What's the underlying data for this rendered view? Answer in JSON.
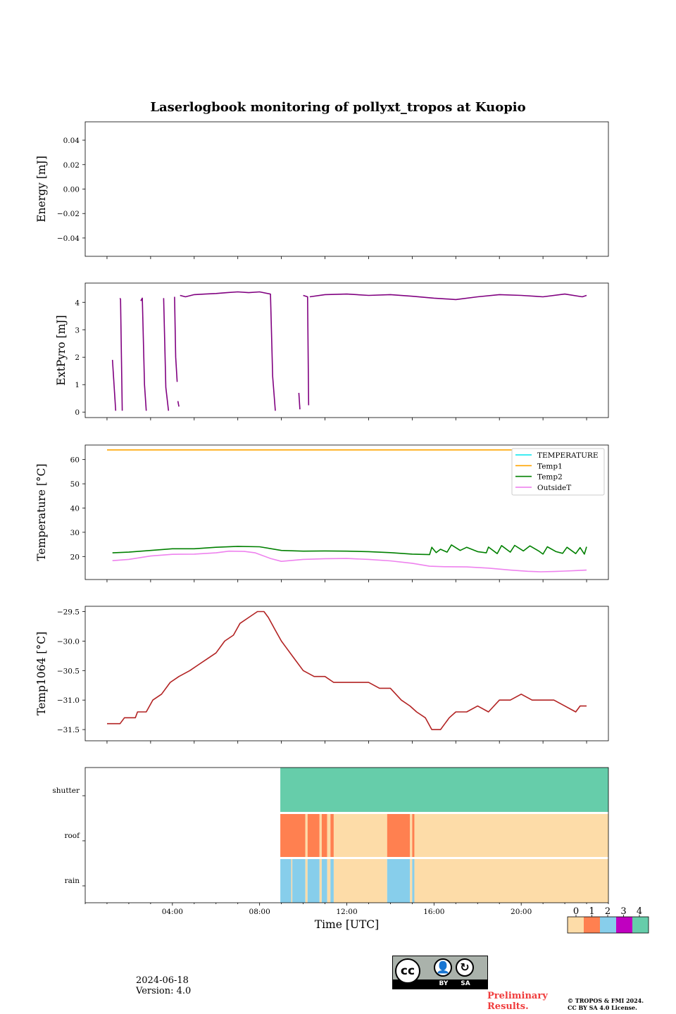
{
  "title": "Laserlogbook monitoring of pollyxt_tropos at Kuopio",
  "colors": {
    "energy": "#800080",
    "extpyro": "#800080",
    "temperature": "#00e5ee",
    "temp1": "#ffa500",
    "temp2": "#008000",
    "outsideT": "#ee82ee",
    "temp1064": "#b22222",
    "flag0": "#fddca8",
    "flag1": "#ff8050",
    "flag2": "#87ceeb",
    "flag3": "#c000c0",
    "flag4": "#66cdaa",
    "prelim": "#f03c3c"
  },
  "chart_data": [
    {
      "type": "line",
      "name": "energy",
      "ylabel": "Energy [mJ]",
      "ylim": [
        -0.055,
        0.055
      ],
      "yticks": [
        0.04,
        0.02,
        0.0,
        -0.02,
        -0.04
      ],
      "ytick_labels": [
        "0.04",
        "0.02",
        "0.00",
        "−0.02",
        "−0.04"
      ],
      "xlim": [
        -1,
        23
      ],
      "series": []
    },
    {
      "type": "line",
      "name": "extpyro",
      "ylabel": "ExtPyro [mJ]",
      "ylim": [
        -0.2,
        4.7
      ],
      "yticks": [
        0,
        1,
        2,
        3,
        4
      ],
      "ytick_labels": [
        "0",
        "1",
        "2",
        "3",
        "4"
      ],
      "xlim": [
        -1,
        23
      ],
      "series": [
        {
          "name": "ExtPyro",
          "segments": [
            [
              [
                0.25,
                1.9
              ],
              [
                0.4,
                0.05
              ]
            ],
            [
              [
                0.6,
                4.15
              ],
              [
                0.62,
                4.1
              ],
              [
                0.7,
                0.05
              ]
            ],
            [
              [
                1.55,
                4.05
              ],
              [
                1.62,
                4.15
              ],
              [
                1.72,
                1.0
              ],
              [
                1.8,
                0.05
              ]
            ],
            [
              [
                2.6,
                4.15
              ],
              [
                2.7,
                0.9
              ],
              [
                2.82,
                0.05
              ]
            ],
            [
              [
                3.1,
                4.2
              ],
              [
                3.15,
                2.0
              ],
              [
                3.22,
                1.1
              ]
            ],
            [
              [
                3.25,
                0.4
              ],
              [
                3.3,
                0.2
              ]
            ],
            [
              [
                3.35,
                4.25
              ],
              [
                3.6,
                4.2
              ],
              [
                4.0,
                4.28
              ],
              [
                4.5,
                4.3
              ],
              [
                5.0,
                4.32
              ],
              [
                5.5,
                4.35
              ],
              [
                6.0,
                4.38
              ],
              [
                6.5,
                4.35
              ],
              [
                7.0,
                4.38
              ],
              [
                7.5,
                4.3
              ],
              [
                7.6,
                1.3
              ],
              [
                7.72,
                0.05
              ]
            ],
            [
              [
                8.8,
                0.7
              ],
              [
                8.85,
                0.1
              ]
            ],
            [
              [
                9.0,
                4.25
              ],
              [
                9.2,
                4.2
              ],
              [
                9.25,
                0.25
              ]
            ],
            [
              [
                9.3,
                4.2
              ],
              [
                10,
                4.28
              ],
              [
                11,
                4.3
              ],
              [
                12,
                4.25
              ],
              [
                13,
                4.28
              ],
              [
                14,
                4.22
              ],
              [
                15,
                4.15
              ],
              [
                16,
                4.1
              ],
              [
                17,
                4.2
              ],
              [
                18,
                4.28
              ],
              [
                19,
                4.25
              ],
              [
                20,
                4.2
              ],
              [
                21,
                4.3
              ],
              [
                21.8,
                4.2
              ],
              [
                22,
                4.25
              ]
            ]
          ]
        }
      ]
    },
    {
      "type": "line",
      "name": "temperature",
      "ylabel": "Temperature [°C]",
      "ylim": [
        10.5,
        66
      ],
      "yticks": [
        20,
        30,
        40,
        50,
        60
      ],
      "ytick_labels": [
        "20",
        "30",
        "40",
        "50",
        "60"
      ],
      "xlim": [
        -1,
        23
      ],
      "legend": [
        "TEMPERATURE",
        "Temp1",
        "Temp2",
        "OutsideT"
      ],
      "series": [
        {
          "name": "TEMPERATURE",
          "points": []
        },
        {
          "name": "Temp1",
          "points": [
            [
              0,
              64
            ],
            [
              18.7,
              64
            ]
          ]
        },
        {
          "name": "Temp2",
          "points": [
            [
              0.25,
              21.5
            ],
            [
              1,
              21.8
            ],
            [
              2,
              22.5
            ],
            [
              3,
              23.2
            ],
            [
              4,
              23.2
            ],
            [
              5,
              23.8
            ],
            [
              6,
              24.2
            ],
            [
              7,
              24.0
            ],
            [
              8,
              22.5
            ],
            [
              9,
              22.2
            ],
            [
              10,
              22.3
            ],
            [
              11,
              22.2
            ],
            [
              12,
              22.0
            ],
            [
              13,
              21.6
            ],
            [
              14,
              21.0
            ],
            [
              14.8,
              20.8
            ],
            [
              14.9,
              23.8
            ],
            [
              15.1,
              21.6
            ],
            [
              15.3,
              23.0
            ],
            [
              15.6,
              21.8
            ],
            [
              15.8,
              24.8
            ],
            [
              16.2,
              22.5
            ],
            [
              16.5,
              23.8
            ],
            [
              17,
              22.0
            ],
            [
              17.4,
              21.5
            ],
            [
              17.5,
              23.9
            ],
            [
              17.9,
              21.2
            ],
            [
              18.1,
              24.5
            ],
            [
              18.5,
              21.8
            ],
            [
              18.7,
              24.6
            ],
            [
              19.1,
              22.3
            ],
            [
              19.4,
              24.4
            ],
            [
              19.8,
              22.3
            ],
            [
              20.0,
              21.0
            ],
            [
              20.2,
              24.0
            ],
            [
              20.6,
              22.0
            ],
            [
              20.9,
              21.3
            ],
            [
              21.1,
              23.8
            ],
            [
              21.5,
              21.2
            ],
            [
              21.7,
              23.7
            ],
            [
              21.9,
              21.0
            ],
            [
              22,
              24.0
            ]
          ]
        },
        {
          "name": "OutsideT",
          "points": [
            [
              0.25,
              18.3
            ],
            [
              1,
              18.8
            ],
            [
              2,
              20.2
            ],
            [
              3,
              20.9
            ],
            [
              4,
              21.0
            ],
            [
              5,
              21.5
            ],
            [
              5.6,
              22.2
            ],
            [
              6.3,
              22.1
            ],
            [
              6.8,
              21.5
            ],
            [
              7.5,
              19.2
            ],
            [
              8,
              18.0
            ],
            [
              9,
              18.8
            ],
            [
              10,
              19.1
            ],
            [
              11,
              19.2
            ],
            [
              12,
              18.8
            ],
            [
              13,
              18.2
            ],
            [
              14,
              17.2
            ],
            [
              14.8,
              16.0
            ],
            [
              15.5,
              15.8
            ],
            [
              16.5,
              15.7
            ],
            [
              17.5,
              15.2
            ],
            [
              18.5,
              14.4
            ],
            [
              19.3,
              13.9
            ],
            [
              19.9,
              13.7
            ],
            [
              20.5,
              13.8
            ],
            [
              21,
              14.0
            ],
            [
              21.5,
              14.2
            ],
            [
              22,
              14.4
            ]
          ]
        }
      ]
    },
    {
      "type": "line",
      "name": "temp1064",
      "ylabel": "Temp1064 [°C]",
      "ylim": [
        -31.69,
        -29.41
      ],
      "yticks": [
        -29.5,
        -30.0,
        -30.5,
        -31.0,
        -31.5
      ],
      "ytick_labels": [
        "−29.5",
        "−30.0",
        "−30.5",
        "−31.0",
        "−31.5"
      ],
      "xlim": [
        -1,
        23
      ],
      "series": [
        {
          "name": "Temp1064",
          "points": [
            [
              0,
              -31.4
            ],
            [
              0.6,
              -31.4
            ],
            [
              0.8,
              -31.3
            ],
            [
              1.3,
              -31.3
            ],
            [
              1.4,
              -31.2
            ],
            [
              1.8,
              -31.2
            ],
            [
              2.1,
              -31.0
            ],
            [
              2.5,
              -30.9
            ],
            [
              2.9,
              -30.7
            ],
            [
              3.3,
              -30.6
            ],
            [
              3.8,
              -30.5
            ],
            [
              4.2,
              -30.4
            ],
            [
              4.6,
              -30.3
            ],
            [
              5.0,
              -30.2
            ],
            [
              5.4,
              -30.0
            ],
            [
              5.8,
              -29.9
            ],
            [
              6.1,
              -29.7
            ],
            [
              6.5,
              -29.6
            ],
            [
              6.9,
              -29.5
            ],
            [
              7.2,
              -29.5
            ],
            [
              7.4,
              -29.6
            ],
            [
              7.7,
              -29.8
            ],
            [
              8.0,
              -30.0
            ],
            [
              8.2,
              -30.1
            ],
            [
              8.6,
              -30.3
            ],
            [
              9.0,
              -30.5
            ],
            [
              9.5,
              -30.6
            ],
            [
              10.0,
              -30.6
            ],
            [
              10.4,
              -30.7
            ],
            [
              11.0,
              -30.7
            ],
            [
              11.5,
              -30.7
            ],
            [
              12.0,
              -30.7
            ],
            [
              12.5,
              -30.8
            ],
            [
              13.0,
              -30.8
            ],
            [
              13.5,
              -31.0
            ],
            [
              13.9,
              -31.1
            ],
            [
              14.2,
              -31.2
            ],
            [
              14.6,
              -31.3
            ],
            [
              14.9,
              -31.5
            ],
            [
              15.3,
              -31.5
            ],
            [
              15.5,
              -31.4
            ],
            [
              15.7,
              -31.3
            ],
            [
              16.0,
              -31.2
            ],
            [
              16.5,
              -31.2
            ],
            [
              17.0,
              -31.1
            ],
            [
              17.5,
              -31.2
            ],
            [
              18.0,
              -31.0
            ],
            [
              18.5,
              -31.0
            ],
            [
              19.0,
              -30.9
            ],
            [
              19.5,
              -31.0
            ],
            [
              20.0,
              -31.0
            ],
            [
              20.5,
              -31.0
            ],
            [
              21.0,
              -31.1
            ],
            [
              21.5,
              -31.2
            ],
            [
              21.7,
              -31.1
            ],
            [
              22.0,
              -31.1
            ]
          ]
        }
      ]
    },
    {
      "type": "heatmap",
      "name": "flags",
      "rows": [
        "shutter",
        "roof",
        "rain"
      ],
      "xlabel": "Time [UTC]",
      "xlim": [
        0,
        24
      ],
      "xticks": [
        "04:00",
        "08:00",
        "12:00",
        "16:00",
        "20:00"
      ],
      "xtick_hours": [
        4,
        8,
        12,
        16,
        20
      ],
      "shutter": [
        [
          8.95,
          24,
          4
        ]
      ],
      "roof": [
        [
          8.95,
          10.1,
          1
        ],
        [
          10.1,
          10.2,
          0
        ],
        [
          10.2,
          10.75,
          1
        ],
        [
          10.75,
          10.85,
          0
        ],
        [
          10.85,
          11.1,
          1
        ],
        [
          11.1,
          11.25,
          0
        ],
        [
          11.25,
          11.4,
          1
        ],
        [
          11.4,
          13.85,
          0
        ],
        [
          13.85,
          14.9,
          1
        ],
        [
          14.9,
          15.0,
          0
        ],
        [
          15.0,
          15.1,
          1
        ],
        [
          15.1,
          24,
          0
        ]
      ],
      "rain": [
        [
          8.95,
          9.45,
          2
        ],
        [
          9.45,
          9.5,
          0
        ],
        [
          9.5,
          10.1,
          2
        ],
        [
          10.1,
          10.2,
          0
        ],
        [
          10.2,
          10.75,
          2
        ],
        [
          10.75,
          10.85,
          0
        ],
        [
          10.85,
          11.1,
          2
        ],
        [
          11.1,
          11.25,
          0
        ],
        [
          11.25,
          11.4,
          2
        ],
        [
          11.4,
          13.85,
          0
        ],
        [
          13.85,
          14.9,
          2
        ],
        [
          14.9,
          15.0,
          0
        ],
        [
          15.0,
          15.1,
          2
        ],
        [
          15.1,
          24,
          0
        ]
      ],
      "colorbar_ticks": [
        "0",
        "1",
        "2",
        "3",
        "4"
      ]
    }
  ],
  "footer": {
    "date": "2024-06-18",
    "version": "Version: 4.0",
    "preliminary_line1": "Preliminary",
    "preliminary_line2": "Results.",
    "copyright_line1": "© TROPOS & FMI 2024.",
    "copyright_line2": "CC BY SA 4.0 License.",
    "cc_text_by": "BY",
    "cc_text_sa": "SA",
    "cc_text_cc": "cc"
  }
}
